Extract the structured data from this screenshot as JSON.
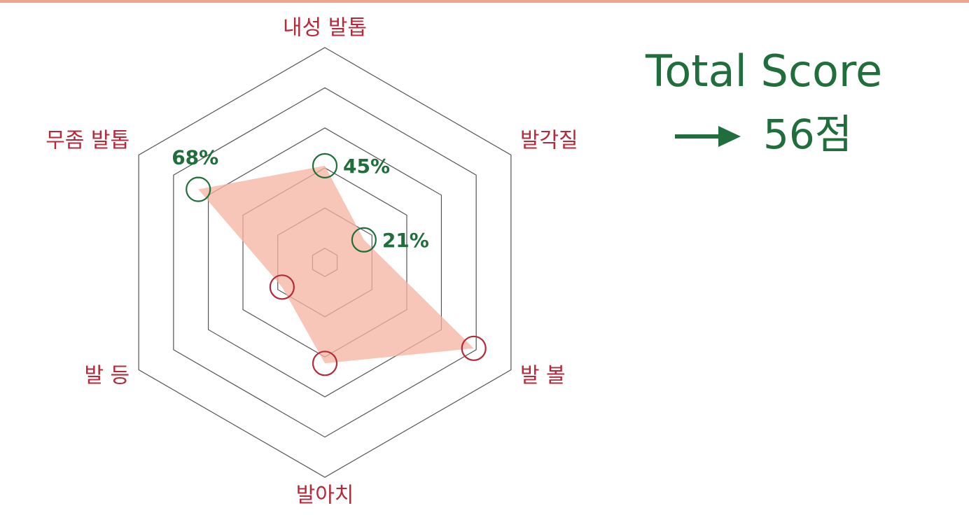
{
  "chart_data": {
    "type": "radar",
    "categories": [
      "내성 발톱",
      "발각질",
      "발 볼",
      "발아치",
      "발 등",
      "무좀 발톱"
    ],
    "values": [
      45,
      21,
      80,
      47,
      23,
      68
    ],
    "value_labels": [
      "45%",
      "21%",
      null,
      null,
      null,
      "68%"
    ],
    "point_colors": [
      "#1f6e3b",
      "#1f6e3b",
      "#b5293a",
      "#b5293a",
      "#b5293a",
      "#1f6e3b"
    ],
    "fill_color": "#f4b3a0",
    "rlim": [
      0,
      100
    ],
    "total_label": "Total Score",
    "total_score": "56점"
  }
}
